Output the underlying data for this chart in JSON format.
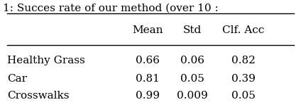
{
  "title": "1: Succes rate of our method (over 10 :",
  "col_labels": [
    "",
    "Mean",
    "Std",
    "Clf. Acc"
  ],
  "rows": [
    [
      "Healthy Grass",
      "0.66",
      "0.06",
      "0.82"
    ],
    [
      "Car",
      "0.81",
      "0.05",
      "0.39"
    ],
    [
      "Crosswalks",
      "0.99",
      "0.009",
      "0.05"
    ]
  ],
  "background_color": "#ffffff",
  "font_size": 11,
  "title_font_size": 11
}
